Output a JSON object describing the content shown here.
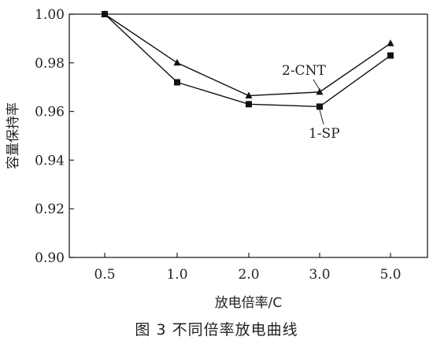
{
  "chart_data": {
    "type": "line",
    "categories": [
      "0.5",
      "1.0",
      "2.0",
      "3.0",
      "5.0"
    ],
    "series": [
      {
        "name": "2-CNT",
        "marker": "triangle",
        "values": [
          1.0,
          0.98,
          0.9665,
          0.968,
          0.988
        ]
      },
      {
        "name": "1-SP",
        "marker": "square",
        "values": [
          1.0,
          0.972,
          0.963,
          0.962,
          0.983
        ]
      }
    ],
    "xlabel": "放电倍率/C",
    "ylabel": "容量保持率",
    "ylim": [
      0.9,
      1.0
    ],
    "yticks": [
      "0.90",
      "0.92",
      "0.94",
      "0.96",
      "0.98",
      "1.00"
    ],
    "grid": false,
    "line_color": "#111111"
  },
  "caption": "图 3    不同倍率放电曲线"
}
